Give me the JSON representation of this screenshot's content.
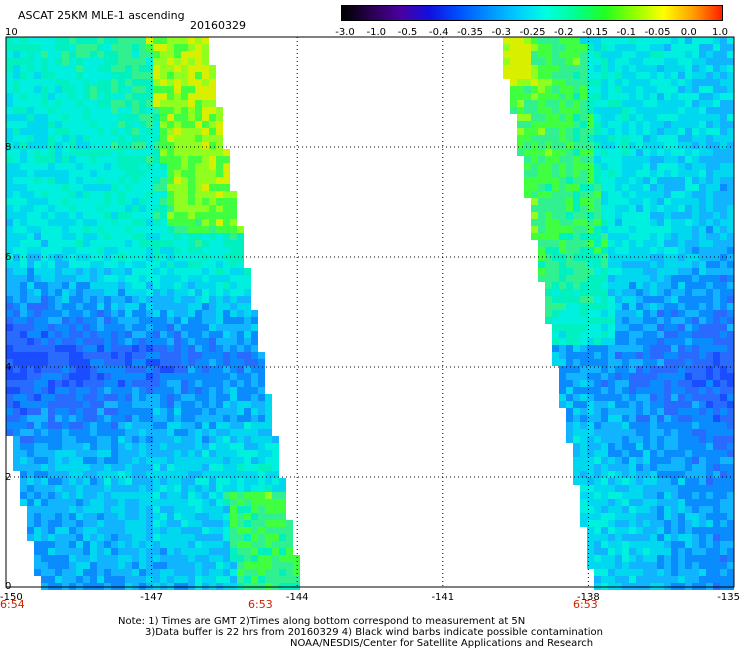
{
  "header": {
    "title": "ASCAT 25KM MLE-1 ascending",
    "date": "20160329"
  },
  "colorbar": {
    "ticks": [
      "-3.0",
      "-1.0",
      "-0.5",
      "-0.4",
      "-0.35",
      "-0.3",
      "-0.25",
      "-0.2",
      "-0.15",
      "-0.1",
      "-0.05",
      "0.0",
      "1.0"
    ],
    "colors": [
      "#000000",
      "#2a0050",
      "#4a00a0",
      "#1010e0",
      "#0050ff",
      "#0090ff",
      "#00ccff",
      "#00ffe0",
      "#00ff90",
      "#20ff20",
      "#90ff00",
      "#ffff00",
      "#ffa000",
      "#ff2000"
    ]
  },
  "map": {
    "x_ticks": [
      "-150",
      "-147",
      "-144",
      "-141",
      "-138",
      "-135"
    ],
    "y_ticks": [
      "0",
      "2",
      "4",
      "6",
      "8",
      "10"
    ],
    "time_labels": [
      "6:54",
      "6:53",
      "6:53"
    ],
    "x_range": [
      -150,
      -135
    ],
    "y_range": [
      0,
      10
    ]
  },
  "footer": {
    "note_line1": "Note: 1) Times are GMT 2)Times along bottom correspond to measurement at 5N",
    "note_line2": "3)Data buffer is 22 hrs from 20160329 4) Black wind barbs indicate possible contamination",
    "credit": "NOAA/NESDIS/Center for Satellite Applications and Research"
  }
}
